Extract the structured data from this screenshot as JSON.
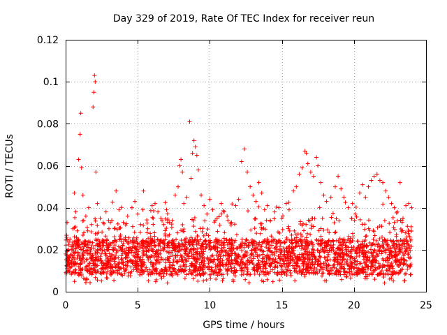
{
  "chart_data": {
    "type": "scatter",
    "title": "Day 329 of 2019, Rate Of TEC Index for receiver reun",
    "xlabel": "GPS time / hours",
    "ylabel": "ROTI / TECUs",
    "xlim": [
      0,
      25
    ],
    "ylim": [
      0,
      0.12
    ],
    "x_ticks": [
      0,
      5,
      10,
      15,
      20,
      25
    ],
    "x_tick_labels": [
      "0",
      "5",
      "10",
      "15",
      "20",
      "25"
    ],
    "y_ticks": [
      0,
      0.02,
      0.04,
      0.06,
      0.08,
      0.1,
      0.12
    ],
    "y_tick_labels": [
      "0",
      "0.02",
      "0.04",
      "0.06",
      "0.08",
      "0.1",
      "0.12"
    ],
    "grid": true,
    "marker": "+",
    "color": "#ff0000",
    "series": [
      {
        "name": "ROTI",
        "points": [
          [
            0.0,
            0.018
          ],
          [
            0.1,
            0.033
          ],
          [
            0.2,
            0.016
          ],
          [
            0.3,
            0.025
          ],
          [
            0.4,
            0.012
          ],
          [
            0.5,
            0.03
          ],
          [
            0.6,
            0.047
          ],
          [
            0.7,
            0.038
          ],
          [
            0.8,
            0.029
          ],
          [
            0.9,
            0.063
          ],
          [
            1.0,
            0.075
          ],
          [
            1.05,
            0.085
          ],
          [
            1.1,
            0.059
          ],
          [
            1.2,
            0.046
          ],
          [
            1.4,
            0.036
          ],
          [
            1.6,
            0.04
          ],
          [
            1.8,
            0.032
          ],
          [
            1.9,
            0.088
          ],
          [
            1.95,
            0.095
          ],
          [
            2.0,
            0.103
          ],
          [
            2.05,
            0.1
          ],
          [
            2.1,
            0.057
          ],
          [
            2.2,
            0.042
          ],
          [
            2.4,
            0.035
          ],
          [
            2.6,
            0.033
          ],
          [
            2.8,
            0.038
          ],
          [
            3.0,
            0.03
          ],
          [
            3.2,
            0.034
          ],
          [
            3.5,
            0.048
          ],
          [
            3.7,
            0.039
          ],
          [
            4.0,
            0.033
          ],
          [
            4.3,
            0.036
          ],
          [
            4.6,
            0.04
          ],
          [
            4.8,
            0.043
          ],
          [
            5.0,
            0.037
          ],
          [
            5.2,
            0.032
          ],
          [
            5.4,
            0.048
          ],
          [
            5.7,
            0.03
          ],
          [
            6.0,
            0.041
          ],
          [
            6.2,
            0.042
          ],
          [
            6.4,
            0.038
          ],
          [
            6.6,
            0.035
          ],
          [
            6.8,
            0.032
          ],
          [
            7.0,
            0.039
          ],
          [
            7.2,
            0.033
          ],
          [
            7.4,
            0.034
          ],
          [
            7.6,
            0.046
          ],
          [
            7.8,
            0.05
          ],
          [
            7.9,
            0.06
          ],
          [
            8.0,
            0.063
          ],
          [
            8.1,
            0.057
          ],
          [
            8.2,
            0.042
          ],
          [
            8.4,
            0.045
          ],
          [
            8.6,
            0.081
          ],
          [
            8.7,
            0.054
          ],
          [
            8.8,
            0.066
          ],
          [
            8.9,
            0.072
          ],
          [
            9.0,
            0.069
          ],
          [
            9.1,
            0.065
          ],
          [
            9.2,
            0.058
          ],
          [
            9.4,
            0.046
          ],
          [
            9.6,
            0.041
          ],
          [
            9.8,
            0.037
          ],
          [
            10.0,
            0.044
          ],
          [
            10.2,
            0.039
          ],
          [
            10.5,
            0.035
          ],
          [
            10.8,
            0.042
          ],
          [
            11.0,
            0.038
          ],
          [
            11.2,
            0.036
          ],
          [
            11.5,
            0.033
          ],
          [
            11.8,
            0.041
          ],
          [
            12.0,
            0.044
          ],
          [
            12.2,
            0.062
          ],
          [
            12.4,
            0.068
          ],
          [
            12.6,
            0.057
          ],
          [
            12.8,
            0.05
          ],
          [
            13.0,
            0.046
          ],
          [
            13.2,
            0.043
          ],
          [
            13.4,
            0.052
          ],
          [
            13.6,
            0.047
          ],
          [
            13.8,
            0.039
          ],
          [
            14.0,
            0.041
          ],
          [
            14.2,
            0.034
          ],
          [
            14.5,
            0.038
          ],
          [
            14.8,
            0.04
          ],
          [
            15.0,
            0.035
          ],
          [
            15.3,
            0.042
          ],
          [
            15.5,
            0.039
          ],
          [
            15.8,
            0.048
          ],
          [
            16.0,
            0.05
          ],
          [
            16.2,
            0.056
          ],
          [
            16.4,
            0.059
          ],
          [
            16.6,
            0.067
          ],
          [
            16.7,
            0.066
          ],
          [
            16.8,
            0.061
          ],
          [
            17.0,
            0.057
          ],
          [
            17.2,
            0.055
          ],
          [
            17.4,
            0.064
          ],
          [
            17.5,
            0.06
          ],
          [
            17.7,
            0.052
          ],
          [
            17.9,
            0.046
          ],
          [
            18.1,
            0.043
          ],
          [
            18.4,
            0.045
          ],
          [
            18.7,
            0.05
          ],
          [
            18.9,
            0.055
          ],
          [
            19.1,
            0.049
          ],
          [
            19.3,
            0.045
          ],
          [
            19.6,
            0.04
          ],
          [
            19.9,
            0.042
          ],
          [
            20.1,
            0.037
          ],
          [
            20.4,
            0.047
          ],
          [
            20.6,
            0.051
          ],
          [
            20.8,
            0.045
          ],
          [
            21.0,
            0.05
          ],
          [
            21.2,
            0.053
          ],
          [
            21.4,
            0.055
          ],
          [
            21.6,
            0.056
          ],
          [
            21.8,
            0.053
          ],
          [
            22.0,
            0.052
          ],
          [
            22.2,
            0.048
          ],
          [
            22.4,
            0.045
          ],
          [
            22.6,
            0.042
          ],
          [
            22.8,
            0.04
          ],
          [
            23.0,
            0.038
          ],
          [
            23.2,
            0.052
          ],
          [
            23.4,
            0.035
          ],
          [
            23.6,
            0.041
          ],
          [
            23.8,
            0.042
          ],
          [
            24.0,
            0.04
          ]
        ],
        "band": {
          "description": "dense cloud of points",
          "x_range": [
            0,
            24
          ],
          "y_core": [
            0.008,
            0.025
          ],
          "y_max_typical": 0.035
        }
      }
    ]
  }
}
